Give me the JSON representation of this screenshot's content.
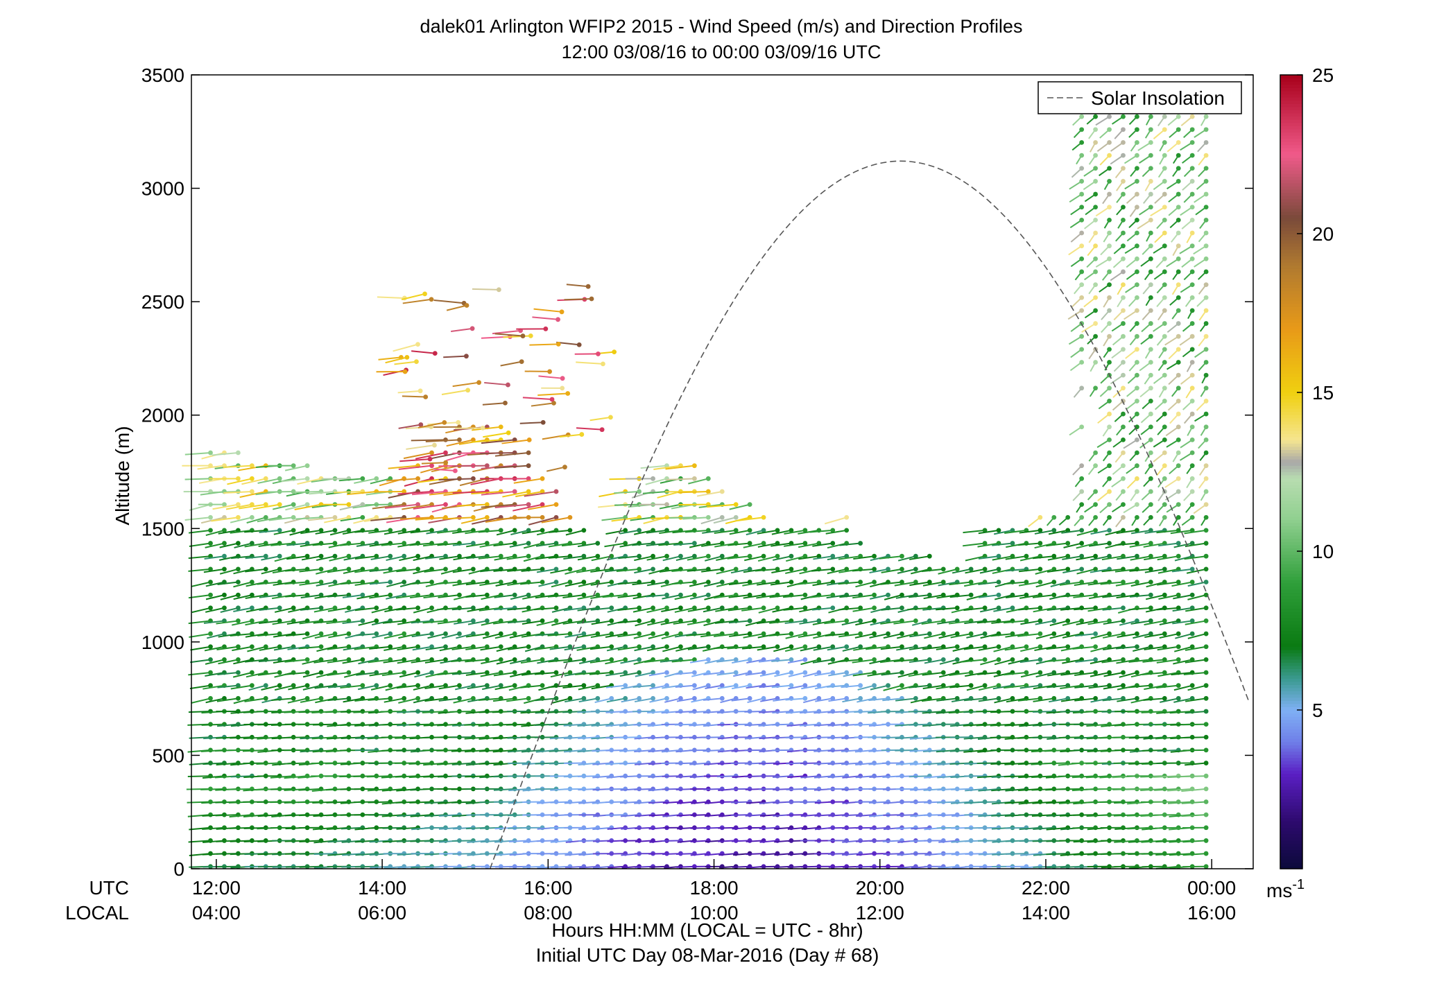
{
  "chart_data": {
    "type": "wind-profile",
    "title": "dalek01 Arlington WFIP2 2015 - Wind Speed (m/s) and Direction Profiles",
    "subtitle": "12:00 03/08/16 to 00:00 03/09/16  UTC",
    "ylabel": "Altitude (m)",
    "xlabel": "Hours HH:MM  (LOCAL = UTC - 8hr)",
    "xlabel2": "Initial UTC Day 08-Mar-2016 (Day # 68)",
    "utc_label": "UTC",
    "local_label": "LOCAL",
    "colorbar_unit": "ms",
    "colorbar_unit_exp": "-1",
    "ylim": [
      0,
      3500
    ],
    "yticks": [
      0,
      500,
      1000,
      1500,
      2000,
      2500,
      3000,
      3500
    ],
    "xlim_hours": [
      11.7,
      24.5
    ],
    "xticks_hours": [
      12,
      14,
      16,
      18,
      20,
      22,
      24
    ],
    "utc_tick_labels": [
      "12:00",
      "14:00",
      "16:00",
      "18:00",
      "20:00",
      "22:00",
      "00:00"
    ],
    "local_tick_labels": [
      "04:00",
      "06:00",
      "08:00",
      "10:00",
      "12:00",
      "14:00",
      "16:00"
    ],
    "colorbar_ticks": [
      5,
      10,
      15,
      20,
      25
    ],
    "colorbar_range": [
      0,
      25
    ],
    "legend": {
      "label": "Solar Insolation",
      "placement": "top-right"
    },
    "solar_insolation": {
      "peak_hour": 20.25,
      "peak_altitude": 3120,
      "rise_hour": 15.3,
      "line_style": "dashed",
      "color": "#555555"
    },
    "profile_interval_hours": 0.1667,
    "colormap": [
      [
        0,
        "#0b0a3a"
      ],
      [
        1.5,
        "#2d0a6e"
      ],
      [
        3,
        "#5a1fc4"
      ],
      [
        4,
        "#6f7fe8"
      ],
      [
        5,
        "#7fb0f5"
      ],
      [
        6,
        "#3a9a8f"
      ],
      [
        7,
        "#0a7a12"
      ],
      [
        9,
        "#2f9f3a"
      ],
      [
        11,
        "#8fcf8f"
      ],
      [
        12.3,
        "#b8dcb0"
      ],
      [
        12.8,
        "#a8a8a8"
      ],
      [
        13.5,
        "#f5e590"
      ],
      [
        15,
        "#f0d010"
      ],
      [
        17,
        "#e89a18"
      ],
      [
        19,
        "#b07a30"
      ],
      [
        20.5,
        "#7a4a3a"
      ],
      [
        22.5,
        "#f05a8a"
      ],
      [
        25,
        "#a8001a"
      ]
    ],
    "regions": [
      {
        "t": [
          11.7,
          24.0
        ],
        "z": [
          0,
          950
        ],
        "speed": "low-level profile decreasing to 2 at mid-day, increasing toward evening"
      }
    ],
    "barb_note": "Each profile is a column of wind barbs spaced ~60 m; barb direction encodes wind direction, colour encodes speed"
  }
}
